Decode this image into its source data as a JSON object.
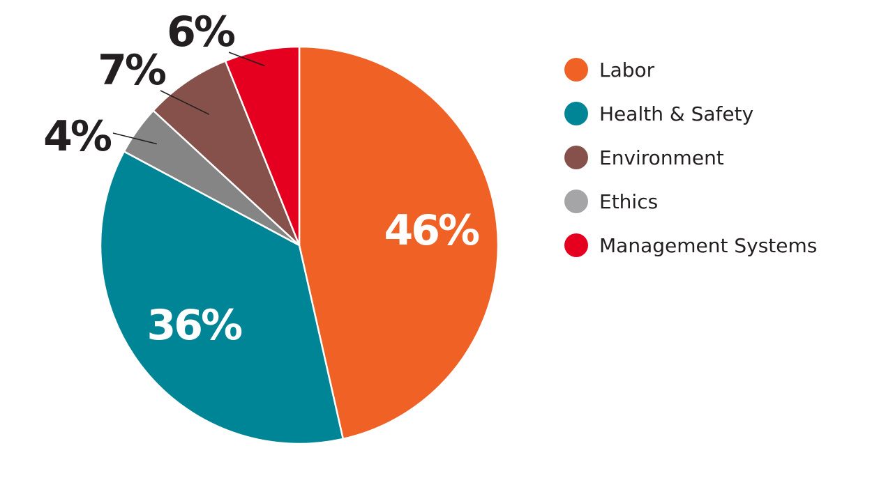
{
  "chart_data": {
    "type": "pie",
    "title": "",
    "legend_position": "right",
    "slices": [
      {
        "name": "Labor",
        "value": 46,
        "label": "46%",
        "color": "#ef6125"
      },
      {
        "name": "Health & Safety",
        "value": 36,
        "label": "36%",
        "color": "#008597"
      },
      {
        "name": "Ethics",
        "value": 4,
        "label": "4%",
        "color": "#858585"
      },
      {
        "name": "Environment",
        "value": 7,
        "label": "7%",
        "color": "#86514a"
      },
      {
        "name": "Management Systems",
        "value": 6,
        "label": "6%",
        "color": "#e6001f"
      }
    ],
    "legend": [
      {
        "name": "Labor",
        "color": "#ef6125"
      },
      {
        "name": "Health & Safety",
        "color": "#008597"
      },
      {
        "name": "Environment",
        "color": "#86514a"
      },
      {
        "name": "Ethics",
        "color": "#a5a5a8"
      },
      {
        "name": "Management Systems",
        "color": "#e6001f"
      }
    ]
  }
}
